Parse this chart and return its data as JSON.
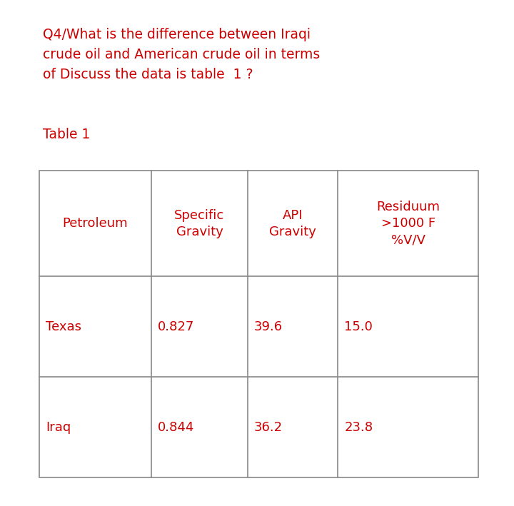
{
  "question": "Q4/What is the difference between Iraqi\ncrude oil and American crude oil in terms\nof Discuss the data is table  1 ?",
  "table_label": "Table 1",
  "headers": [
    "Petroleum",
    "Specific\nGravity",
    "API\nGravity",
    "Residuum\n>1000 F\n%V/V"
  ],
  "rows": [
    [
      "Texas",
      "0.827",
      "39.6",
      "15.0"
    ],
    [
      "Iraq",
      "0.844",
      "36.2",
      "23.8"
    ]
  ],
  "text_color": "#CC0000",
  "bg_color": "#FFFFFF",
  "border_color": "#888888",
  "font_size_question": 13.5,
  "font_size_table_label": 13.5,
  "font_size_table": 13.0,
  "fig_width": 7.2,
  "fig_height": 7.09,
  "dpi": 100
}
